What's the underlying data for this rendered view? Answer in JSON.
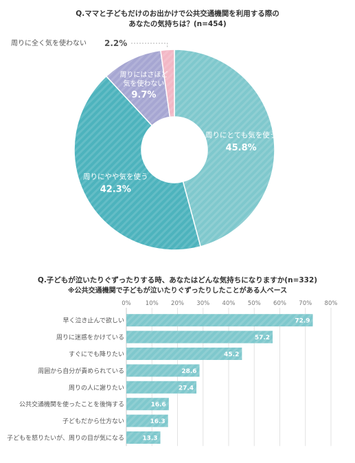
{
  "chart_data": [
    {
      "type": "pie",
      "title_line1": "Q.ママと子どもだけのお出かけで公共交通機関を利用する際の",
      "title_line2": "あなたの気持ちは？(n=454)",
      "unit": "%",
      "slices": [
        {
          "label": "周りにとても気を使う",
          "value": 45.8,
          "value_text": "45.8%",
          "color": "#7fc8cd"
        },
        {
          "label": "周りにやや気を使う",
          "value": 42.3,
          "value_text": "42.3%",
          "color": "#4db3bd"
        },
        {
          "label": "周りにはさほど気を使わない",
          "label_lines": [
            "周りにはさほど",
            "気を使わない"
          ],
          "value": 9.7,
          "value_text": "9.7%",
          "color": "#a6a6d2"
        },
        {
          "label": "周りに全く気を使わない",
          "value": 2.2,
          "value_text": "2.2%",
          "color": "#f2b7c5"
        }
      ]
    },
    {
      "type": "bar",
      "orientation": "horizontal",
      "title_line1": "Q.子どもが泣いたりぐずったりする時、あなたはどんな気持ちになりますか(n=332)",
      "title_line2": "※公共交通機関で子どもが泣いたりぐずったりしたことがある人ベース",
      "color": "#7fc8cd",
      "xlim": [
        0,
        80
      ],
      "xticks": [
        "0%",
        "10%",
        "20%",
        "30%",
        "40%",
        "50%",
        "60%",
        "70%",
        "80%"
      ],
      "categories": [
        "早く泣き止んで欲しい",
        "周りに迷惑をかけている",
        "すぐにでも降りたい",
        "周囲から自分が責められている",
        "周りの人に謝りたい",
        "公共交通機関を使ったことを後悔する",
        "子どもだから仕方ない",
        "子どもを怒りたいが、周りの目が気になる"
      ],
      "values": [
        72.9,
        57.2,
        45.2,
        28.6,
        27.4,
        16.6,
        16.3,
        13.3
      ],
      "value_labels": [
        "72.9",
        "57.2",
        "45.2",
        "28.6",
        "27.4",
        "16.6",
        "16.3",
        "13.3"
      ]
    }
  ]
}
